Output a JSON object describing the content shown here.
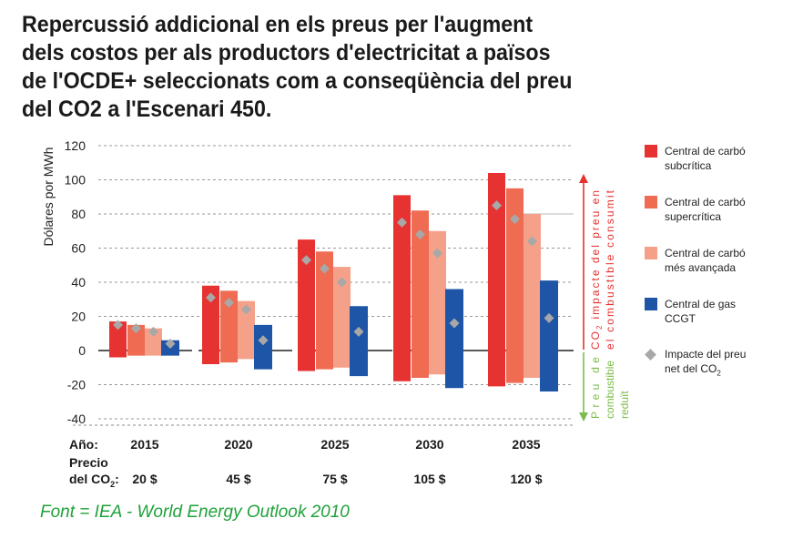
{
  "title_lines": [
    "Repercussió addicional en els preus per l'augment",
    "dels costos per als productors d'electricitat a països",
    "de l'OCDE+ seleccionats com a conseqüència del preu",
    "del CO2 a l'Escenari 450."
  ],
  "source": "Font = IEA - World Energy Outlook 2010",
  "legend": [
    {
      "line1": "Central de carbó",
      "line2": "subcrítica",
      "color": "#e63230"
    },
    {
      "line1": "Central de carbó",
      "line2": "supercrítica",
      "color": "#ef6b52"
    },
    {
      "line1": "Central de carbó",
      "line2": "més avançada",
      "color": "#f5a18a"
    },
    {
      "line1": "Central de gas",
      "line2": "CCGT",
      "color": "#1f55a6"
    },
    {
      "line1": "Impacte del preu",
      "line2": "net del CO",
      "sub": "2",
      "color": "#a8a8a8",
      "shape": "diamond"
    }
  ],
  "annotations": {
    "up_line1_pre": "impacte del preu en",
    "up_co": "CO",
    "up_sub": "2",
    "up_line2": "el combustible consumit",
    "down_line1": "Preu de",
    "down_line2": "combustible",
    "down_line3": "reduït",
    "up_color": "#e63230",
    "down_color": "#7cbc4b"
  },
  "x_labels": {
    "year_label": "Año:",
    "price_label_1": "Precio",
    "price_label_2a": "del CO",
    "price_label_2sub": "2",
    "price_label_2b": ":",
    "years": [
      "2015",
      "2020",
      "2025",
      "2030",
      "2035"
    ],
    "prices": [
      "20 $",
      "45 $",
      "75 $",
      "105 $",
      "120 $"
    ]
  },
  "chart_data": {
    "type": "bar",
    "ylabel": "Dólares por MWh",
    "ylim": [
      -40,
      120
    ],
    "yticks": [
      -40,
      -20,
      0,
      20,
      40,
      60,
      80,
      100,
      120
    ],
    "categories": [
      "2015",
      "2020",
      "2025",
      "2030",
      "2035"
    ],
    "series": [
      {
        "name": "Central de carbó subcrítica",
        "color": "#e63230",
        "top": [
          17,
          38,
          65,
          91,
          104
        ],
        "bottom": [
          -4,
          -8,
          -12,
          -18,
          -21
        ],
        "net": [
          15,
          31,
          53,
          75,
          85
        ]
      },
      {
        "name": "Central de carbó supercrítica",
        "color": "#ef6b52",
        "top": [
          15,
          35,
          58,
          82,
          95
        ],
        "bottom": [
          -3,
          -7,
          -11,
          -16,
          -19
        ],
        "net": [
          13,
          28,
          48,
          68,
          77
        ]
      },
      {
        "name": "Central de carbó més avançada",
        "color": "#f5a18a",
        "top": [
          13,
          29,
          49,
          70,
          80
        ],
        "bottom": [
          -3,
          -5,
          -10,
          -14,
          -16
        ],
        "net": [
          11,
          24,
          40,
          57,
          64
        ]
      },
      {
        "name": "Central de gas CCGT",
        "color": "#1f55a6",
        "top": [
          6,
          15,
          26,
          36,
          41
        ],
        "bottom": [
          -3,
          -11,
          -15,
          -22,
          -24
        ],
        "net": [
          4,
          6,
          11,
          16,
          19
        ]
      }
    ]
  }
}
